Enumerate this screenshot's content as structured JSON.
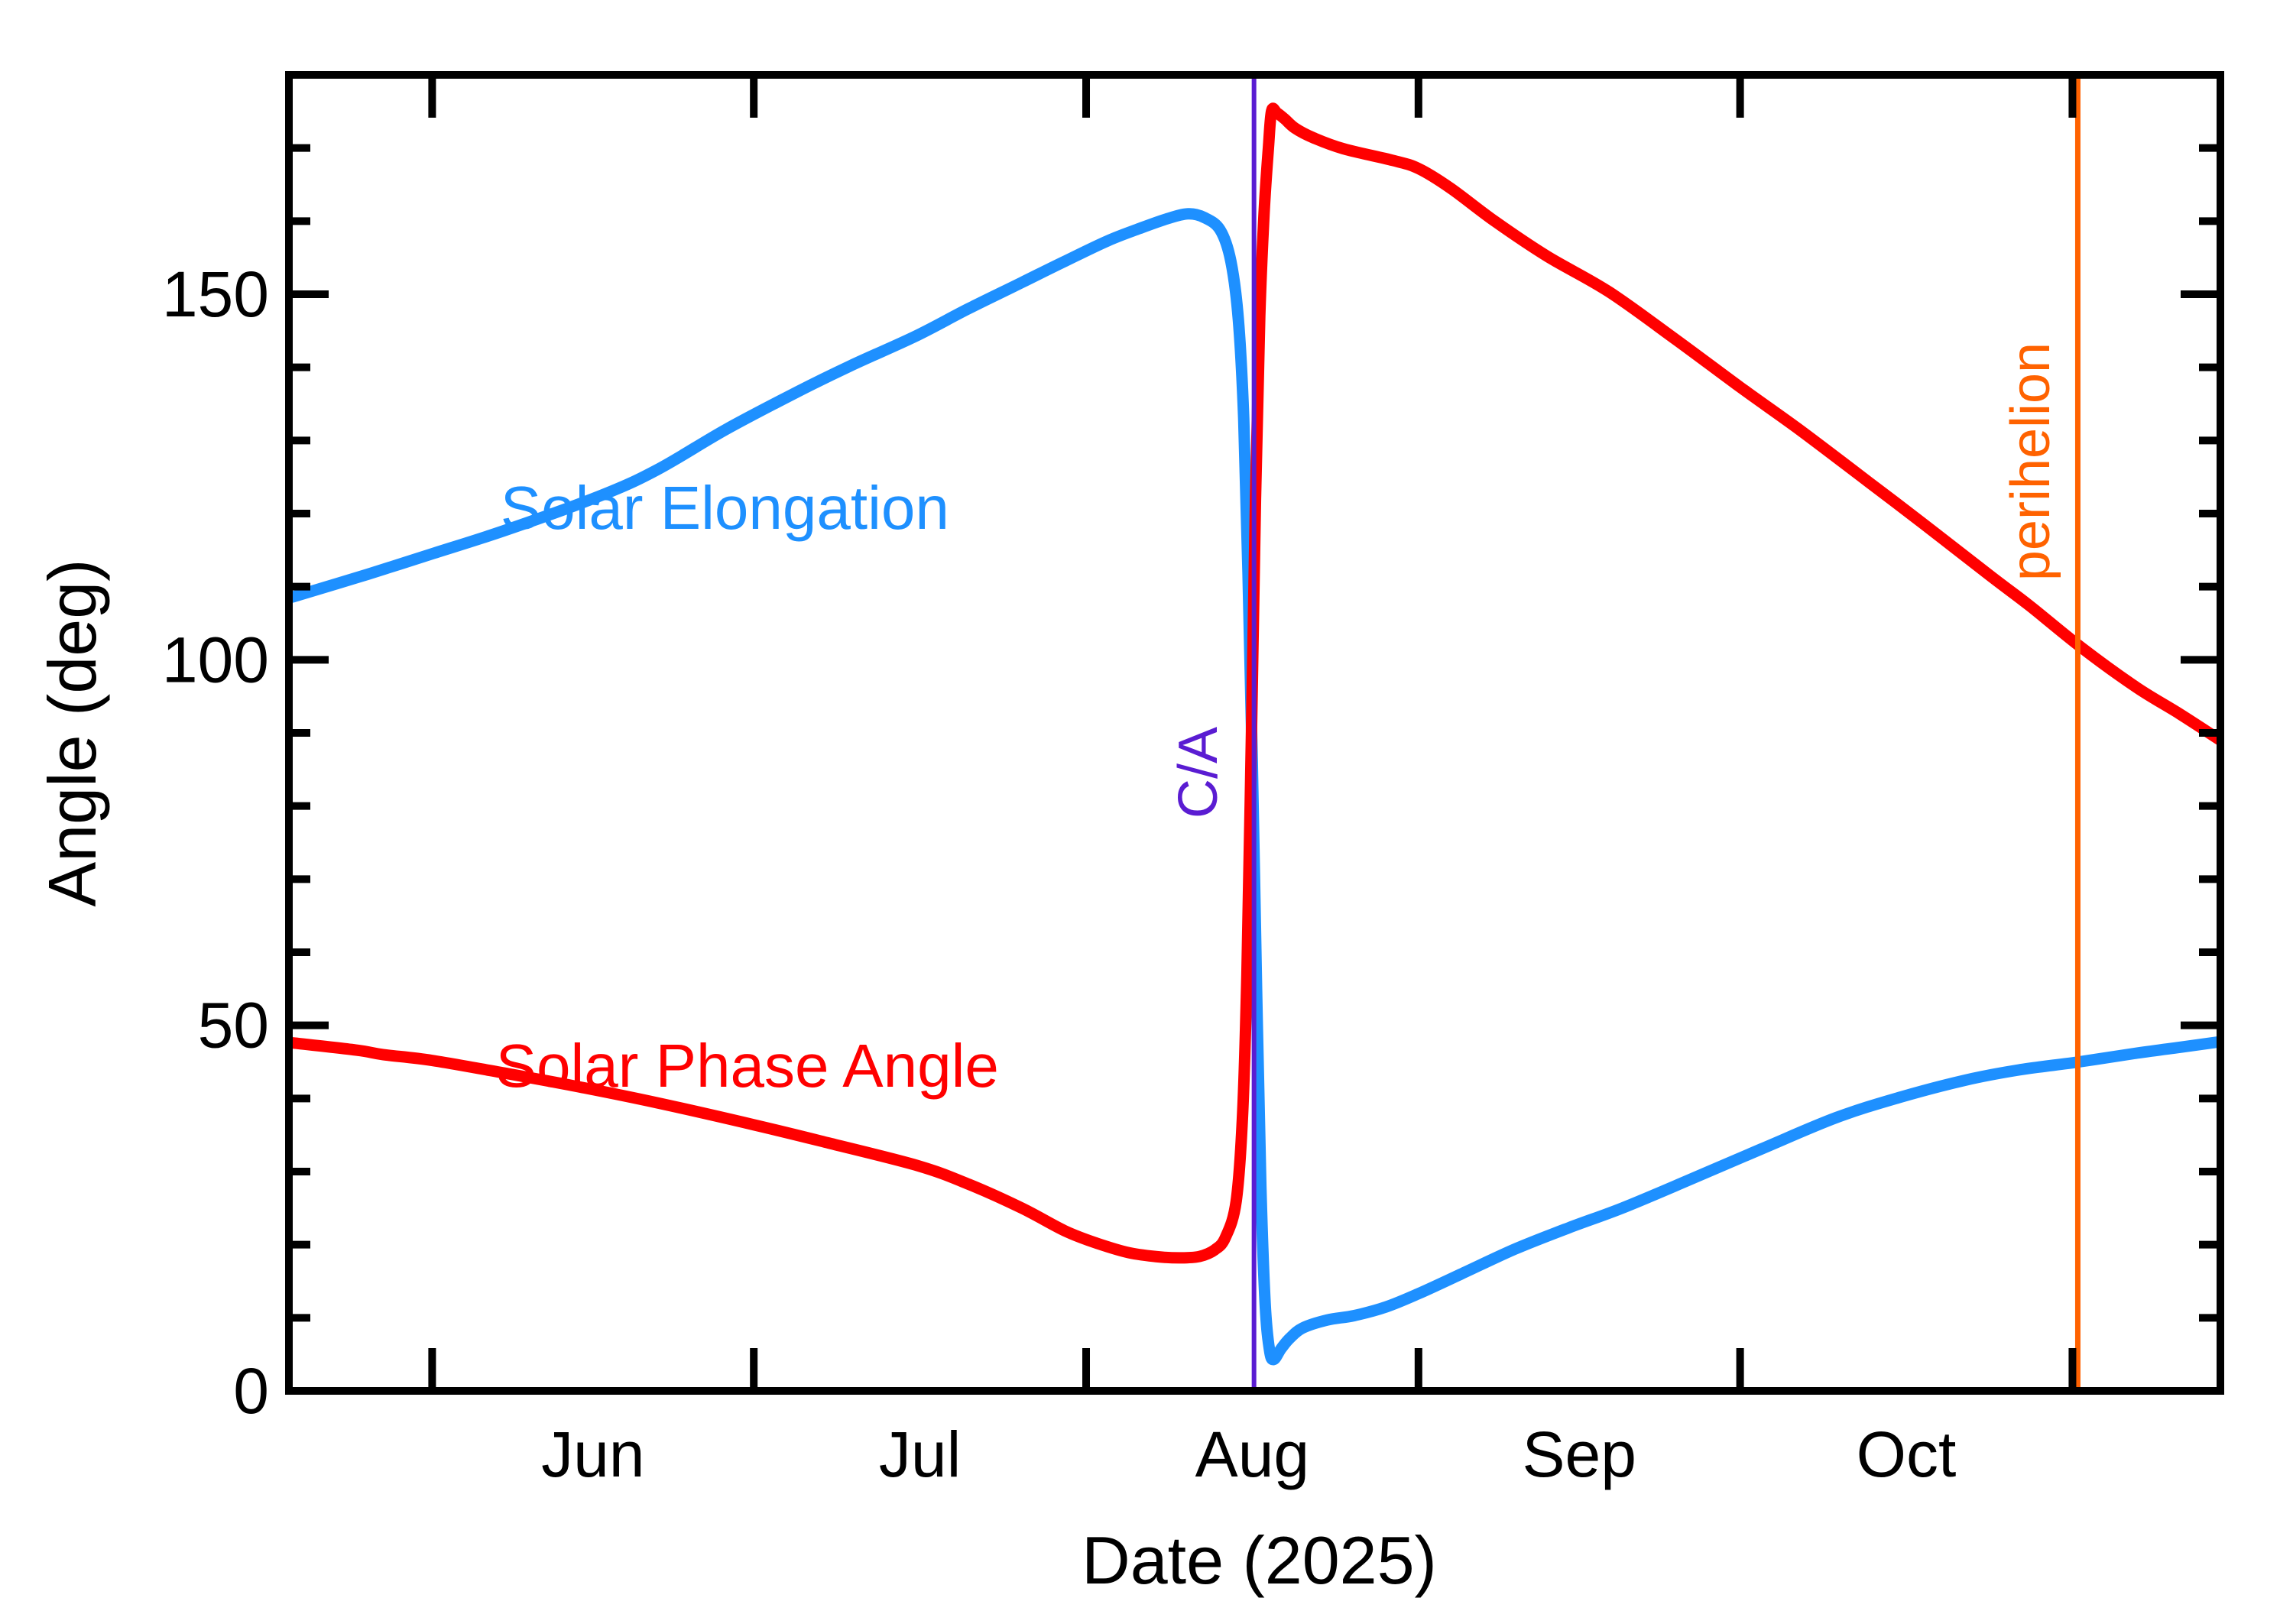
{
  "chart_data": {
    "type": "line",
    "title": "",
    "xlabel": "Date (2025)",
    "ylabel": "Angle (deg)",
    "y_axis": {
      "min": 0,
      "max": 180,
      "major_ticks": [
        0,
        50,
        100,
        150
      ],
      "minor_tick_step": 10
    },
    "x_axis": {
      "unit": "days after 2025-May-19 (range shown: mid-May to mid-Nov 2025)",
      "start_day": -0.36,
      "end_day": 179.8,
      "month_ticks": [
        {
          "day": 13,
          "label": "Jun"
        },
        {
          "day": 43,
          "label": "Jul"
        },
        {
          "day": 74,
          "label": "Aug"
        },
        {
          "day": 105,
          "label": "Sep"
        },
        {
          "day": 135,
          "label": "Oct"
        },
        {
          "day": 166,
          "label": ""
        }
      ]
    },
    "grid": false,
    "legend_position": "inline-labels",
    "series": [
      {
        "name": "Solar Elongation",
        "color": "#1e90ff",
        "points": [
          [
            0,
            108.6
          ],
          [
            7,
            111.7
          ],
          [
            13,
            114.5
          ],
          [
            20,
            117.8
          ],
          [
            28.8,
            122.5
          ],
          [
            34,
            126.0
          ],
          [
            40.4,
            131.5
          ],
          [
            47,
            136.6
          ],
          [
            52,
            140.2
          ],
          [
            58,
            144.2
          ],
          [
            63,
            148.0
          ],
          [
            68,
            151.6
          ],
          [
            72,
            154.5
          ],
          [
            76,
            157.3
          ],
          [
            79,
            159.0
          ],
          [
            81.5,
            160.3
          ],
          [
            83.5,
            161.0
          ],
          [
            85,
            160.5
          ],
          [
            86.5,
            158.8
          ],
          [
            87.5,
            154.5
          ],
          [
            88.2,
            146.5
          ],
          [
            88.7,
            133.0
          ],
          [
            89.1,
            112.0
          ],
          [
            89.5,
            86.0
          ],
          [
            89.9,
            55.0
          ],
          [
            90.3,
            28.0
          ],
          [
            90.7,
            12.0
          ],
          [
            91.1,
            5.6
          ],
          [
            91.5,
            4.3
          ],
          [
            92.2,
            5.8
          ],
          [
            93,
            7.2
          ],
          [
            94.2,
            8.6
          ],
          [
            96.5,
            9.7
          ],
          [
            99,
            10.3
          ],
          [
            102,
            11.5
          ],
          [
            105,
            13.3
          ],
          [
            109,
            16.0
          ],
          [
            114,
            19.4
          ],
          [
            119,
            22.3
          ],
          [
            124,
            25.0
          ],
          [
            130,
            28.7
          ],
          [
            137,
            33.1
          ],
          [
            144,
            37.4
          ],
          [
            150,
            40.2
          ],
          [
            156,
            42.5
          ],
          [
            161,
            43.9
          ],
          [
            166.6,
            45.0
          ],
          [
            172,
            46.2
          ],
          [
            176,
            47.0
          ],
          [
            180,
            47.8
          ]
        ]
      },
      {
        "name": "Solar Phase Angle",
        "color": "#ff0000",
        "points": [
          [
            0,
            47.6
          ],
          [
            6,
            46.6
          ],
          [
            8.4,
            46.0
          ],
          [
            13,
            45.2
          ],
          [
            20,
            43.4
          ],
          [
            27,
            41.5
          ],
          [
            34,
            39.4
          ],
          [
            43,
            36.4
          ],
          [
            50,
            33.9
          ],
          [
            58.3,
            30.8
          ],
          [
            63,
            28.3
          ],
          [
            68,
            25.0
          ],
          [
            72,
            21.9
          ],
          [
            75,
            20.2
          ],
          [
            78,
            18.9
          ],
          [
            81,
            18.3
          ],
          [
            83,
            18.2
          ],
          [
            84.6,
            18.4
          ],
          [
            86,
            19.3
          ],
          [
            87,
            21.0
          ],
          [
            88,
            26.0
          ],
          [
            88.6,
            38.0
          ],
          [
            89,
            57.0
          ],
          [
            89.4,
            88.0
          ],
          [
            89.8,
            122.0
          ],
          [
            90.2,
            147.0
          ],
          [
            90.6,
            161.0
          ],
          [
            91,
            170.0
          ],
          [
            91.3,
            175.1
          ],
          [
            91.8,
            174.8
          ],
          [
            92.5,
            174.0
          ],
          [
            93.5,
            172.7
          ],
          [
            95.2,
            171.4
          ],
          [
            98,
            169.9
          ],
          [
            102.6,
            168.3
          ],
          [
            105,
            167.2
          ],
          [
            108,
            164.5
          ],
          [
            112.1,
            160.0
          ],
          [
            117,
            155.2
          ],
          [
            122.8,
            150.3
          ],
          [
            129,
            143.8
          ],
          [
            135,
            137.3
          ],
          [
            140.6,
            131.4
          ],
          [
            147,
            124.3
          ],
          [
            152,
            118.7
          ],
          [
            158.5,
            111.3
          ],
          [
            162,
            107.4
          ],
          [
            166.9,
            101.6
          ],
          [
            172,
            96.2
          ],
          [
            176,
            92.6
          ],
          [
            180,
            88.8
          ]
        ]
      }
    ],
    "event_lines": [
      {
        "label": "C/A",
        "day": 89.66,
        "color": "#5a1cd2"
      },
      {
        "label": "perihelion",
        "day": 166.5,
        "color": "#ff6200"
      }
    ]
  },
  "annotations": {
    "elongation_label": {
      "text": "Solar Elongation",
      "day": 40.3,
      "deg": 120.7,
      "color": "#1e90ff"
    },
    "phase_label": {
      "text": "Solar Phase Angle",
      "day": 42.4,
      "deg": 44.4,
      "color": "#ff0000"
    },
    "ca_label": {
      "text": "C/A",
      "day": 84.5,
      "deg": 84.6,
      "color": "#5a1cd2"
    },
    "perihelion_label": {
      "text": "perihelion",
      "day": 162.1,
      "deg": 127.1,
      "color": "#ff6200"
    }
  },
  "style_colors": {
    "axis": "#000000",
    "background": "#ffffff"
  }
}
